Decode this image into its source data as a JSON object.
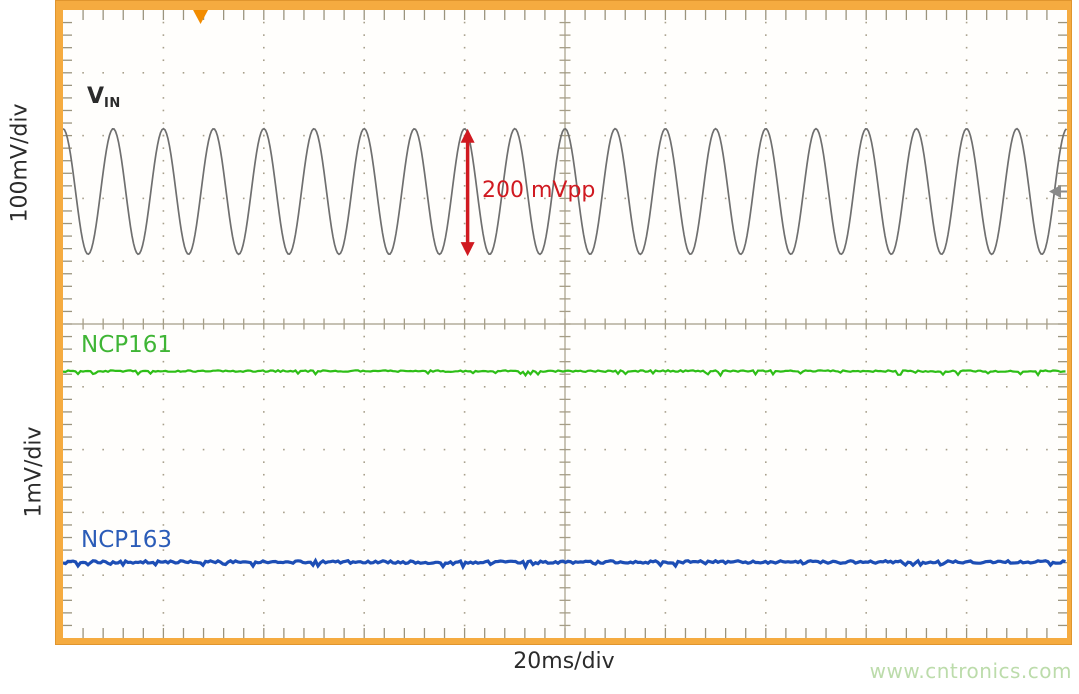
{
  "labels": {
    "vin_main": "V",
    "vin_sub": "IN",
    "ncp161": "NCP161",
    "ncp163": "NCP163",
    "vpp": "200 mVpp",
    "y_top": "100mV/div",
    "y_bottom": "1mV/div",
    "x_axis": "20ms/div",
    "watermark": "www.cntronics.com"
  },
  "colors": {
    "frame_orange": "#f5ab40",
    "frame_edge": "#e0952e",
    "grid": "#a79f8b",
    "tick": "#9b947e",
    "center_line": "#a59d87",
    "sine_trace": "#6f6f6f",
    "ncp161_trace": "#2ebe17",
    "ncp163_trace": "#1d4eb5",
    "annotation_red": "#d01920",
    "trigger_orange": "#f28c00",
    "ref_arrow_gray": "#8a8a8a",
    "watermark_green": "#bcdcab",
    "text_dark": "#2b2b2b"
  },
  "chart_data": {
    "type": "line",
    "instrument": "oscilloscope",
    "x_axis": {
      "label": "20ms/div",
      "divisions": 10,
      "ms_per_div": 20,
      "total_ms": 200
    },
    "y_axes": [
      {
        "label": "100mV/div",
        "applies_to": "V_IN"
      },
      {
        "label": "1mV/div",
        "applies_to": "NCP161 / NCP163"
      }
    ],
    "grid": {
      "style": "dotted",
      "x_divisions": 10,
      "y_divisions": 10,
      "minor_per_div": 5
    },
    "series": [
      {
        "name": "V_IN",
        "type": "sine",
        "color": "#6f6f6f",
        "frequency_hz": 100,
        "period_ms": 10,
        "amplitude_mvpp": 200,
        "amplitude_div": 2,
        "center_offset_div_from_mid": 2.11,
        "cycles_visible": 20
      },
      {
        "name": "NCP161",
        "type": "flat-noise",
        "color": "#2ebe17",
        "offset_div_from_mid": -0.75,
        "description": "flat output line, ~1 mV noise"
      },
      {
        "name": "NCP163",
        "type": "flat-noise",
        "color": "#1d4eb5",
        "offset_div_from_mid": -3.79,
        "description": "flat output line, ~1 mV noise"
      }
    ],
    "annotations": [
      {
        "type": "measurement-arrow",
        "text": "200 mVpp",
        "color": "#d01920",
        "x_div": 4.03,
        "from_div_above_mid": 3.11,
        "to_div_above_mid": 1.08
      }
    ],
    "markers": [
      {
        "type": "trigger",
        "position": "top",
        "x_div": 1.37,
        "color": "#f28c00"
      },
      {
        "type": "channel-reference",
        "position": "right",
        "y_div_above_mid": 2.11,
        "color": "#8a8a8a"
      }
    ]
  }
}
